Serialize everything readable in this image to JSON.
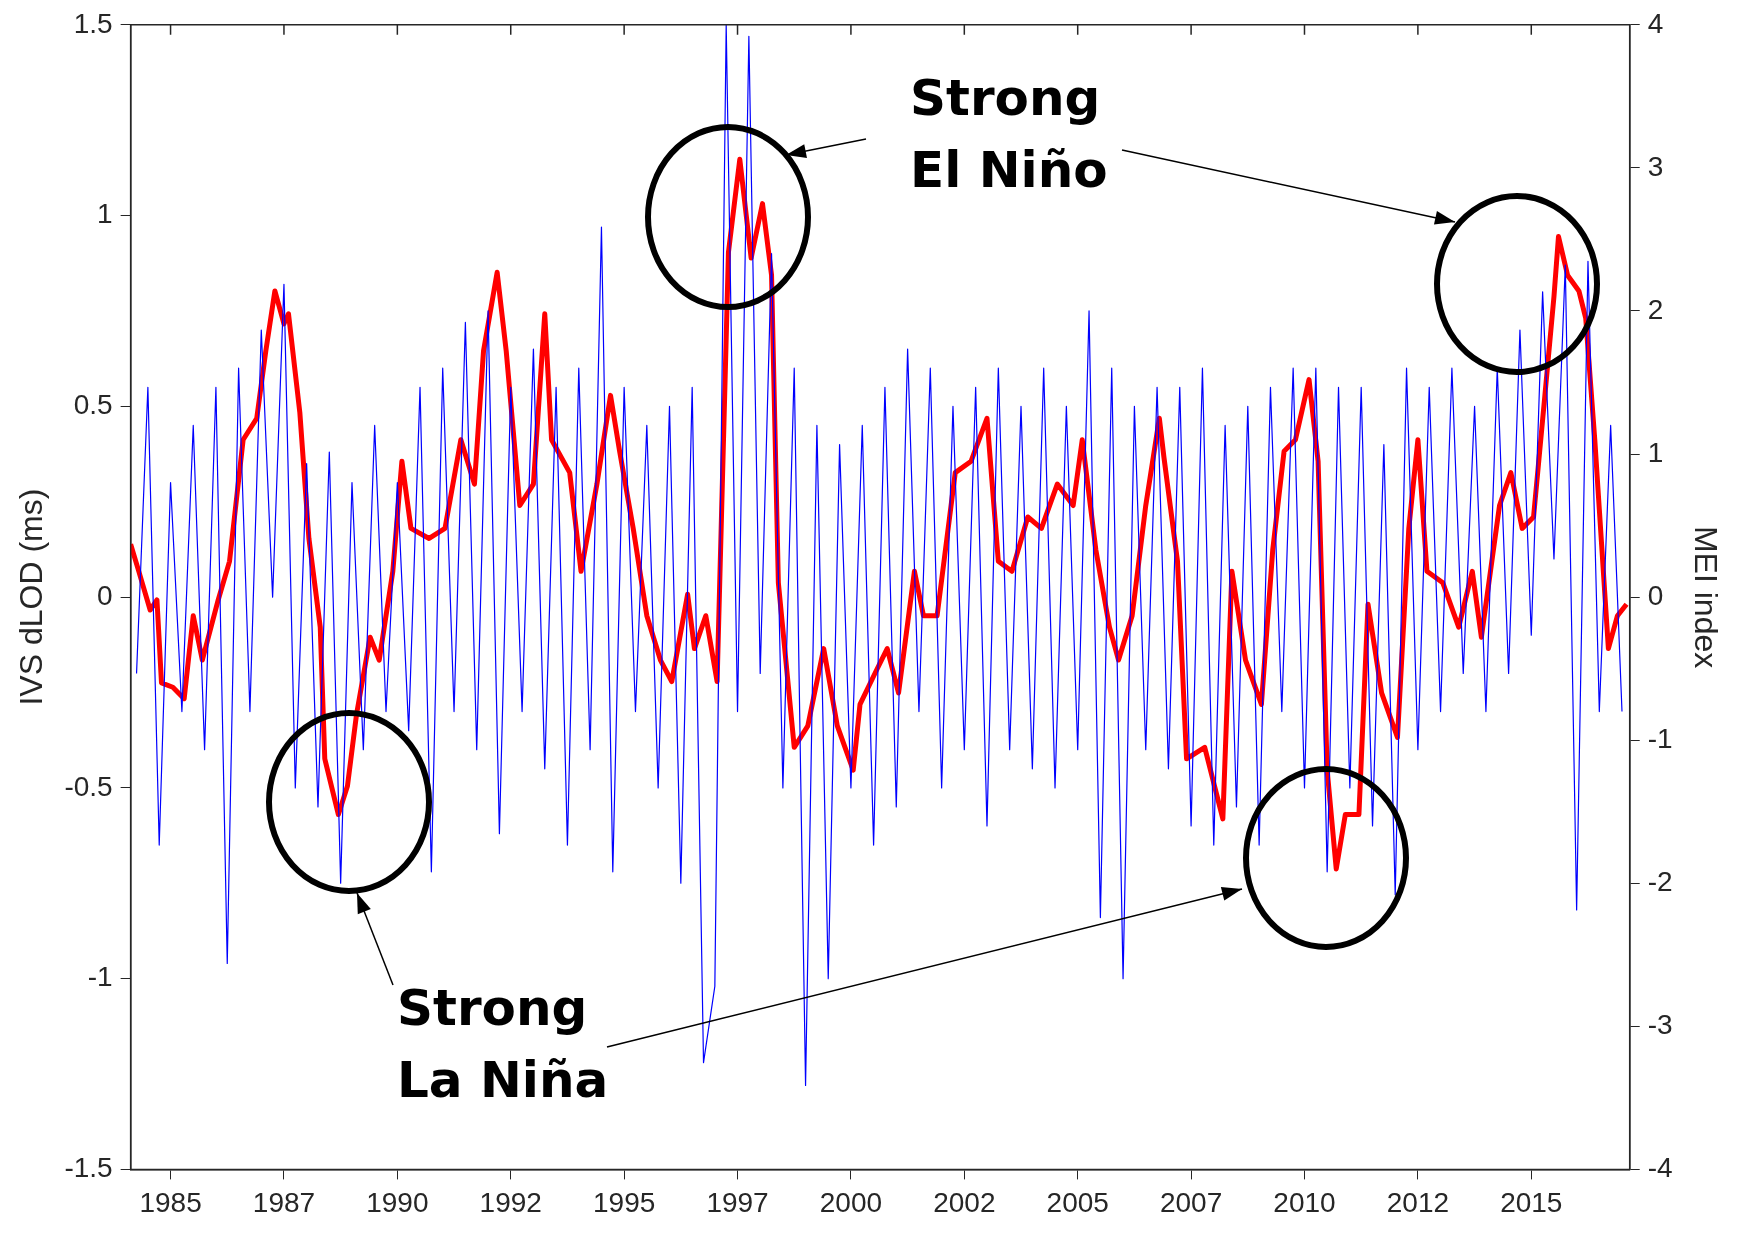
{
  "chart_data": {
    "type": "line",
    "ylabel": "IVS dLOD (ms)",
    "y2label": "MEI index",
    "annotations": [
      "Strong El Niño",
      "Strong La Niña"
    ],
    "xlim": [
      1984.12,
      2017.17
    ],
    "xticks": [
      1985,
      {
        "value": 1987.5,
        "label": "1987"
      },
      1990,
      {
        "value": 1992.5,
        "label": "1992"
      },
      1995,
      {
        "value": 1997.5,
        "label": "1997"
      },
      2000,
      {
        "value": 2002.5,
        "label": "2002"
      },
      2005,
      {
        "value": 2007.5,
        "label": "2007"
      },
      2010,
      {
        "value": 2012.5,
        "label": "2012"
      },
      2015
    ],
    "ylim": [
      -1.5,
      1.5
    ],
    "yticks": [
      -1.5,
      -1,
      -0.5,
      0,
      0.5,
      1,
      1.5
    ],
    "y2lim": [
      -4,
      4
    ],
    "y2ticks": [
      -4,
      -3,
      -2,
      -1,
      0,
      1,
      2,
      3,
      4
    ],
    "series": [
      {
        "color": "#0000ff",
        "x": [
          1984.25,
          1984.5,
          1984.75,
          1985,
          1985.25,
          1985.5,
          1985.75,
          1986,
          1986.25,
          1986.5,
          1986.75,
          1987,
          1987.25,
          1987.5,
          1987.75,
          1988,
          1988.25,
          1988.5,
          1988.75,
          1989,
          1989.25,
          1989.5,
          1989.75,
          1990,
          1990.25,
          1990.5,
          1990.75,
          1991,
          1991.25,
          1991.5,
          1991.75,
          1992,
          1992.25,
          1992.5,
          1992.75,
          1993,
          1993.25,
          1993.5,
          1993.75,
          1994,
          1994.25,
          1994.5,
          1994.75,
          1995,
          1995.25,
          1995.5,
          1995.75,
          1996,
          1996.25,
          1996.5,
          1996.75,
          1997,
          1997.25,
          1997.5,
          1997.75,
          1998,
          1998.25,
          1998.5,
          1998.75,
          1999,
          1999.25,
          1999.5,
          1999.75,
          2000,
          2000.25,
          2000.5,
          2000.75,
          2001,
          2001.25,
          2001.5,
          2001.75,
          2002,
          2002.25,
          2002.5,
          2002.75,
          2003,
          2003.25,
          2003.5,
          2003.75,
          2004,
          2004.25,
          2004.5,
          2004.75,
          2005,
          2005.25,
          2005.5,
          2005.75,
          2006,
          2006.25,
          2006.5,
          2006.75,
          2007,
          2007.25,
          2007.5,
          2007.75,
          2008,
          2008.25,
          2008.5,
          2008.75,
          2009,
          2009.25,
          2009.5,
          2009.75,
          2010,
          2010.25,
          2010.5,
          2010.75,
          2011,
          2011.25,
          2011.5,
          2011.75,
          2012,
          2012.25,
          2012.5,
          2012.75,
          2013,
          2013.25,
          2013.5,
          2013.75,
          2014,
          2014.25,
          2014.5,
          2014.75,
          2015,
          2015.25,
          2015.5,
          2015.75,
          2016,
          2016.25,
          2016.5,
          2016.75,
          2017
        ],
        "values": [
          -0.2,
          0.55,
          -0.65,
          0.3,
          -0.3,
          0.45,
          -0.4,
          0.55,
          -0.96,
          0.6,
          -0.3,
          0.7,
          0,
          0.82,
          -0.5,
          0.35,
          -0.55,
          0.38,
          -0.75,
          0.3,
          -0.4,
          0.45,
          -0.3,
          0.3,
          -0.35,
          0.55,
          -0.72,
          0.6,
          -0.3,
          0.72,
          -0.4,
          0.75,
          -0.62,
          0.55,
          -0.3,
          0.65,
          -0.45,
          0.55,
          -0.65,
          0.6,
          -0.4,
          0.97,
          -0.72,
          0.55,
          -0.3,
          0.45,
          -0.5,
          0.5,
          -0.75,
          0.55,
          -1.22,
          -1.02,
          1.5,
          -0.3,
          1.47,
          -0.2,
          0.9,
          -0.5,
          0.6,
          -1.28,
          0.45,
          -1.0,
          0.4,
          -0.5,
          0.45,
          -0.65,
          0.55,
          -0.55,
          0.65,
          -0.3,
          0.6,
          -0.5,
          0.5,
          -0.4,
          0.55,
          -0.6,
          0.6,
          -0.4,
          0.5,
          -0.45,
          0.6,
          -0.5,
          0.5,
          -0.4,
          0.75,
          -0.84,
          0.6,
          -1.0,
          0.5,
          -0.4,
          0.55,
          -0.45,
          0.55,
          -0.6,
          0.6,
          -0.65,
          0.45,
          -0.55,
          0.5,
          -0.65,
          0.55,
          -0.3,
          0.6,
          -0.5,
          0.6,
          -0.72,
          0.55,
          -0.5,
          0.55,
          -0.6,
          0.4,
          -0.78,
          0.6,
          -0.4,
          0.55,
          -0.3,
          0.6,
          -0.2,
          0.5,
          -0.3,
          0.6,
          -0.2,
          0.7,
          -0.1,
          0.8,
          0.1,
          0.87,
          -0.82,
          0.88,
          -0.3,
          0.45,
          -0.3
        ]
      },
      {
        "color": "#ff0000",
        "axis": "y2",
        "x": [
          1984.12,
          1984.3,
          1984.55,
          1984.7,
          1984.8,
          1985.05,
          1985.3,
          1985.5,
          1985.7,
          1986.05,
          1986.3,
          1986.6,
          1986.9,
          1987.1,
          1987.3,
          1987.5,
          1987.6,
          1987.85,
          1988.05,
          1988.3,
          1988.4,
          1988.7,
          1988.9,
          1989.1,
          1989.4,
          1989.6,
          1989.9,
          1990.1,
          1990.3,
          1990.7,
          1991.05,
          1991.4,
          1991.7,
          1991.9,
          1992.2,
          1992.4,
          1992.7,
          1993.0,
          1993.25,
          1993.4,
          1993.8,
          1994.05,
          1994.4,
          1994.7,
          1994.9,
          1995.2,
          1995.5,
          1995.8,
          1996.05,
          1996.4,
          1996.55,
          1996.8,
          1997.05,
          1997.3,
          1997.55,
          1997.8,
          1998.05,
          1998.25,
          1998.4,
          1998.75,
          1999.05,
          1999.4,
          1999.7,
          2000.05,
          2000.2,
          2000.55,
          2000.8,
          2001.05,
          2001.4,
          2001.6,
          2001.9,
          2002.3,
          2002.65,
          2003.0,
          2003.25,
          2003.55,
          2003.9,
          2004.2,
          2004.55,
          2004.9,
          2005.1,
          2005.4,
          2005.7,
          2005.9,
          2006.2,
          2006.5,
          2006.8,
          2006.9,
          2007.2,
          2007.4,
          2007.8,
          2008.2,
          2008.4,
          2008.7,
          2009.05,
          2009.3,
          2009.55,
          2009.8,
          2010.1,
          2010.3,
          2010.5,
          2010.7,
          2010.9,
          2011.2,
          2011.4,
          2011.7,
          2012.05,
          2012.3,
          2012.5,
          2012.7,
          2013.05,
          2013.4,
          2013.7,
          2013.9,
          2014.3,
          2014.55,
          2014.8,
          2015.05,
          2015.3,
          2015.5,
          2015.6,
          2015.8,
          2016.05,
          2016.2,
          2016.4,
          2016.7,
          2016.9,
          2017.1
        ],
        "values": [
          0.37,
          0.18,
          -0.09,
          -0.02,
          -0.6,
          -0.63,
          -0.71,
          -0.13,
          -0.44,
          -0.02,
          0.25,
          1.1,
          1.25,
          1.72,
          2.14,
          1.91,
          1.98,
          1.29,
          0.41,
          -0.21,
          -1.13,
          -1.52,
          -1.32,
          -0.82,
          -0.28,
          -0.44,
          0.18,
          0.95,
          0.48,
          0.41,
          0.48,
          1.1,
          0.79,
          1.72,
          2.27,
          1.72,
          0.64,
          0.79,
          1.98,
          1.1,
          0.87,
          0.18,
          0.79,
          1.41,
          1.02,
          0.48,
          -0.13,
          -0.44,
          -0.59,
          0.02,
          -0.36,
          -0.13,
          -0.59,
          2.41,
          3.06,
          2.37,
          2.75,
          2.25,
          0.1,
          -1.05,
          -0.9,
          -0.36,
          -0.9,
          -1.21,
          -0.75,
          -0.52,
          -0.36,
          -0.67,
          0.18,
          -0.13,
          -0.13,
          0.87,
          0.95,
          1.25,
          0.25,
          0.18,
          0.56,
          0.48,
          0.79,
          0.64,
          1.1,
          0.33,
          -0.21,
          -0.44,
          -0.13,
          0.64,
          1.25,
          0.98,
          0.25,
          -1.13,
          -1.05,
          -1.55,
          0.18,
          -0.44,
          -0.75,
          0.33,
          1.02,
          1.1,
          1.52,
          0.95,
          -1.21,
          -1.9,
          -1.52,
          -1.52,
          -0.05,
          -0.67,
          -0.98,
          0.48,
          1.1,
          0.18,
          0.1,
          -0.21,
          0.18,
          -0.28,
          0.64,
          0.87,
          0.48,
          0.56,
          1.41,
          2.1,
          2.52,
          2.25,
          2.14,
          1.95,
          1.1,
          -0.36,
          -0.13,
          -0.05
        ]
      }
    ]
  }
}
